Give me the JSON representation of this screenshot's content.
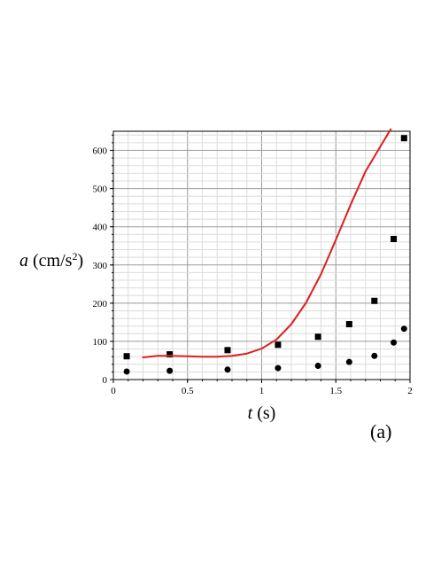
{
  "chart_data": {
    "type": "scatter",
    "panel_label": "(a)",
    "xlabel": {
      "symbol": "t",
      "unit": " (s)"
    },
    "ylabel": {
      "symbol": "a",
      "unit": " (cm/s",
      "exponent": "2",
      "unit_close": ")"
    },
    "xlim": [
      0,
      2
    ],
    "ylim": [
      0,
      650
    ],
    "x_ticks": [
      0,
      0.5,
      1,
      1.5,
      2
    ],
    "x_tick_labels": [
      "0",
      "0.5",
      "1",
      "1.5",
      "2"
    ],
    "y_ticks": [
      0,
      100,
      200,
      300,
      400,
      500,
      600
    ],
    "y_tick_labels": [
      "0",
      "100",
      "200",
      "300",
      "400",
      "500",
      "600"
    ],
    "grid": true,
    "series": [
      {
        "marker": "square",
        "color": "#000000",
        "x": [
          0.09,
          0.38,
          0.77,
          1.11,
          1.38,
          1.59,
          1.76,
          1.89,
          1.96
        ],
        "y": [
          61,
          66,
          77,
          91,
          112,
          145,
          206,
          368,
          632
        ]
      },
      {
        "marker": "circle",
        "color": "#000000",
        "x": [
          0.09,
          0.38,
          0.77,
          1.11,
          1.38,
          1.59,
          1.76,
          1.89,
          1.96
        ],
        "y": [
          21,
          23,
          26,
          30,
          36,
          46,
          62,
          97,
          133
        ]
      },
      {
        "marker": "line",
        "color": "#e01e1e",
        "x": [
          0.2,
          0.3,
          0.4,
          0.5,
          0.6,
          0.7,
          0.8,
          0.9,
          1.0,
          1.1,
          1.2,
          1.3,
          1.4,
          1.5,
          1.6,
          1.7,
          1.8,
          1.87
        ],
        "y": [
          58,
          62,
          62,
          61,
          60,
          60,
          62,
          68,
          81,
          105,
          145,
          202,
          276,
          366,
          458,
          545,
          610,
          655
        ]
      }
    ]
  }
}
